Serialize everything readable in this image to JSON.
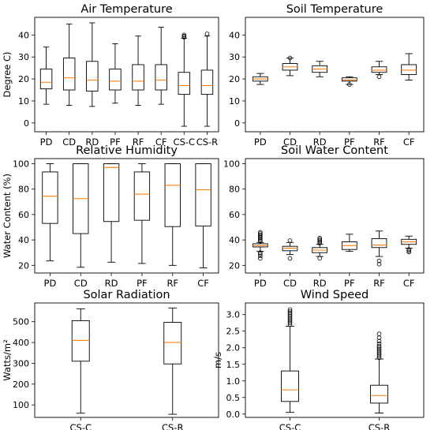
{
  "colors": {
    "box": "#000000",
    "median": "#ff7f0e",
    "flier": "#000000"
  },
  "chart_data": [
    {
      "type": "box",
      "title": "Air Temperature",
      "xlabel": "",
      "ylabel": "Degree C)",
      "ylim": [
        -4,
        48
      ],
      "yticks": [
        0,
        10,
        20,
        30,
        40
      ],
      "grid": false,
      "categories": [
        "PD",
        "CD",
        "RD",
        "PF",
        "RF",
        "CF",
        "CS-C",
        "CS-R"
      ],
      "boxes": [
        {
          "whislo": 8.5,
          "q1": 15.5,
          "med": 18.5,
          "q3": 24.5,
          "whishi": 34.5,
          "fliers": []
        },
        {
          "whislo": 8.0,
          "q1": 15.0,
          "med": 20.5,
          "q3": 29.5,
          "whishi": 45.0,
          "fliers": []
        },
        {
          "whislo": 7.5,
          "q1": 14.5,
          "med": 19.5,
          "q3": 28.0,
          "whishi": 45.5,
          "fliers": []
        },
        {
          "whislo": 9.0,
          "q1": 15.0,
          "med": 19.0,
          "q3": 24.5,
          "whishi": 36.0,
          "fliers": []
        },
        {
          "whislo": 8.0,
          "q1": 15.0,
          "med": 19.0,
          "q3": 26.5,
          "whishi": 39.5,
          "fliers": []
        },
        {
          "whislo": 8.5,
          "q1": 15.0,
          "med": 19.5,
          "q3": 26.5,
          "whishi": 43.5,
          "fliers": []
        },
        {
          "whislo": -1.5,
          "q1": 13.0,
          "med": 17.0,
          "q3": 23.0,
          "whishi": 38.5,
          "fliers": [
            39.0,
            39.5,
            40.0
          ]
        },
        {
          "whislo": -1.5,
          "q1": 13.0,
          "med": 17.0,
          "q3": 24.0,
          "whishi": 39.5,
          "fliers": [
            40.5
          ]
        }
      ]
    },
    {
      "type": "box",
      "title": "Soil Temperature",
      "xlabel": "",
      "ylabel": "",
      "ylim": [
        -4,
        48
      ],
      "yticks": [
        0,
        10,
        20,
        30,
        40
      ],
      "grid": false,
      "categories": [
        "PD",
        "CD",
        "RD",
        "PF",
        "RF",
        "CF"
      ],
      "boxes": [
        {
          "whislo": 17.5,
          "q1": 19.0,
          "med": 20.0,
          "q3": 21.0,
          "whishi": 22.5,
          "fliers": []
        },
        {
          "whislo": 21.5,
          "q1": 24.0,
          "med": 25.5,
          "q3": 27.0,
          "whishi": 29.5,
          "fliers": [
            29.5
          ]
        },
        {
          "whislo": 21.0,
          "q1": 23.0,
          "med": 24.5,
          "q3": 26.0,
          "whishi": 28.0,
          "fliers": []
        },
        {
          "whislo": 17.5,
          "q1": 19.0,
          "med": 19.5,
          "q3": 20.5,
          "whishi": 21.0,
          "fliers": [
            17.5
          ]
        },
        {
          "whislo": 22.0,
          "q1": 23.0,
          "med": 24.0,
          "q3": 25.5,
          "whishi": 28.0,
          "fliers": [
            21.0
          ]
        },
        {
          "whislo": 19.5,
          "q1": 22.0,
          "med": 24.0,
          "q3": 26.5,
          "whishi": 31.5,
          "fliers": []
        }
      ]
    },
    {
      "type": "box",
      "title": "Relative Humidity",
      "xlabel": "",
      "ylabel": "Water Content (%)",
      "ylim": [
        14,
        104
      ],
      "yticks": [
        20,
        40,
        60,
        80,
        100
      ],
      "grid": false,
      "categories": [
        "PD",
        "CD",
        "RD",
        "PF",
        "RF",
        "CF"
      ],
      "boxes": [
        {
          "whislo": 23.5,
          "q1": 53.0,
          "med": 74.5,
          "q3": 93.5,
          "whishi": 100.0,
          "fliers": []
        },
        {
          "whislo": 18.5,
          "q1": 45.0,
          "med": 72.5,
          "q3": 100.0,
          "whishi": 100.0,
          "fliers": []
        },
        {
          "whislo": 22.5,
          "q1": 54.5,
          "med": 97.0,
          "q3": 100.0,
          "whishi": 100.0,
          "fliers": []
        },
        {
          "whislo": 21.5,
          "q1": 55.5,
          "med": 76.0,
          "q3": 93.5,
          "whishi": 100.0,
          "fliers": []
        },
        {
          "whislo": 20.0,
          "q1": 50.5,
          "med": 83.0,
          "q3": 100.0,
          "whishi": 100.0,
          "fliers": []
        },
        {
          "whislo": 18.0,
          "q1": 51.0,
          "med": 79.5,
          "q3": 100.0,
          "whishi": 100.0,
          "fliers": []
        }
      ]
    },
    {
      "type": "box",
      "title": "Soil Water Content",
      "xlabel": "",
      "ylabel": "",
      "ylim": [
        14,
        104
      ],
      "yticks": [
        20,
        40,
        60,
        80,
        100
      ],
      "grid": false,
      "categories": [
        "PD",
        "CD",
        "RD",
        "PF",
        "RF",
        "CF"
      ],
      "boxes": [
        {
          "whislo": 31.0,
          "q1": 34.5,
          "med": 35.5,
          "q3": 37.0,
          "whishi": 38.0,
          "fliers": [
            25.5,
            27.5,
            29.0,
            30.0,
            39.0,
            40.0,
            41.0,
            42.0,
            43.0,
            44.0,
            45.0,
            46.0
          ]
        },
        {
          "whislo": 28.5,
          "q1": 31.5,
          "med": 33.5,
          "q3": 35.0,
          "whishi": 38.0,
          "fliers": [
            25.5,
            39.5
          ]
        },
        {
          "whislo": 27.0,
          "q1": 30.0,
          "med": 32.0,
          "q3": 34.0,
          "whishi": 36.5,
          "fliers": [
            25.5,
            37.5,
            38.5,
            39.5,
            40.5,
            41.5
          ]
        },
        {
          "whislo": 31.0,
          "q1": 32.5,
          "med": 35.5,
          "q3": 38.5,
          "whishi": 44.5,
          "fliers": []
        },
        {
          "whislo": 27.0,
          "q1": 34.0,
          "med": 36.0,
          "q3": 41.0,
          "whishi": 47.0,
          "fliers": [
            23.5,
            21.0
          ]
        },
        {
          "whislo": 33.5,
          "q1": 36.5,
          "med": 38.5,
          "q3": 40.5,
          "whishi": 43.0,
          "fliers": [
            30.5,
            31.5,
            32.5
          ]
        }
      ]
    },
    {
      "type": "box",
      "title": "Solar Radiation",
      "xlabel": "",
      "ylabel": "Watts/m²",
      "ylim": [
        40,
        590
      ],
      "yticks": [
        100,
        200,
        300,
        400,
        500
      ],
      "grid": false,
      "categories": [
        "CS-C",
        "CS-R"
      ],
      "boxes": [
        {
          "whislo": 60,
          "q1": 310,
          "med": 410,
          "q3": 505,
          "whishi": 562,
          "fliers": []
        },
        {
          "whislo": 55,
          "q1": 297,
          "med": 400,
          "q3": 497,
          "whishi": 566,
          "fliers": []
        }
      ]
    },
    {
      "type": "box",
      "title": "Wind Speed",
      "xlabel": "",
      "ylabel": "m/s",
      "ylim": [
        -0.1,
        3.35
      ],
      "yticks": [
        0.0,
        0.5,
        1.0,
        1.5,
        2.0,
        2.5,
        3.0
      ],
      "yticklabels": [
        "0.0",
        "0.5",
        "1.0",
        "1.5",
        "2.0",
        "2.5",
        "3.0"
      ],
      "grid": false,
      "categories": [
        "CS-C",
        "CS-R"
      ],
      "boxes": [
        {
          "whislo": 0.05,
          "q1": 0.38,
          "med": 0.73,
          "q3": 1.3,
          "whishi": 2.65,
          "fliers": [
            2.7,
            2.75,
            2.8,
            2.85,
            2.9,
            2.95,
            3.0,
            3.05,
            3.1,
            3.15
          ]
        },
        {
          "whislo": 0.03,
          "q1": 0.33,
          "med": 0.56,
          "q3": 0.87,
          "whishi": 1.66,
          "fliers": [
            1.7,
            1.75,
            1.8,
            1.85,
            1.9,
            1.95,
            2.0,
            2.05,
            2.12,
            2.2,
            2.3,
            2.42
          ]
        }
      ]
    }
  ]
}
